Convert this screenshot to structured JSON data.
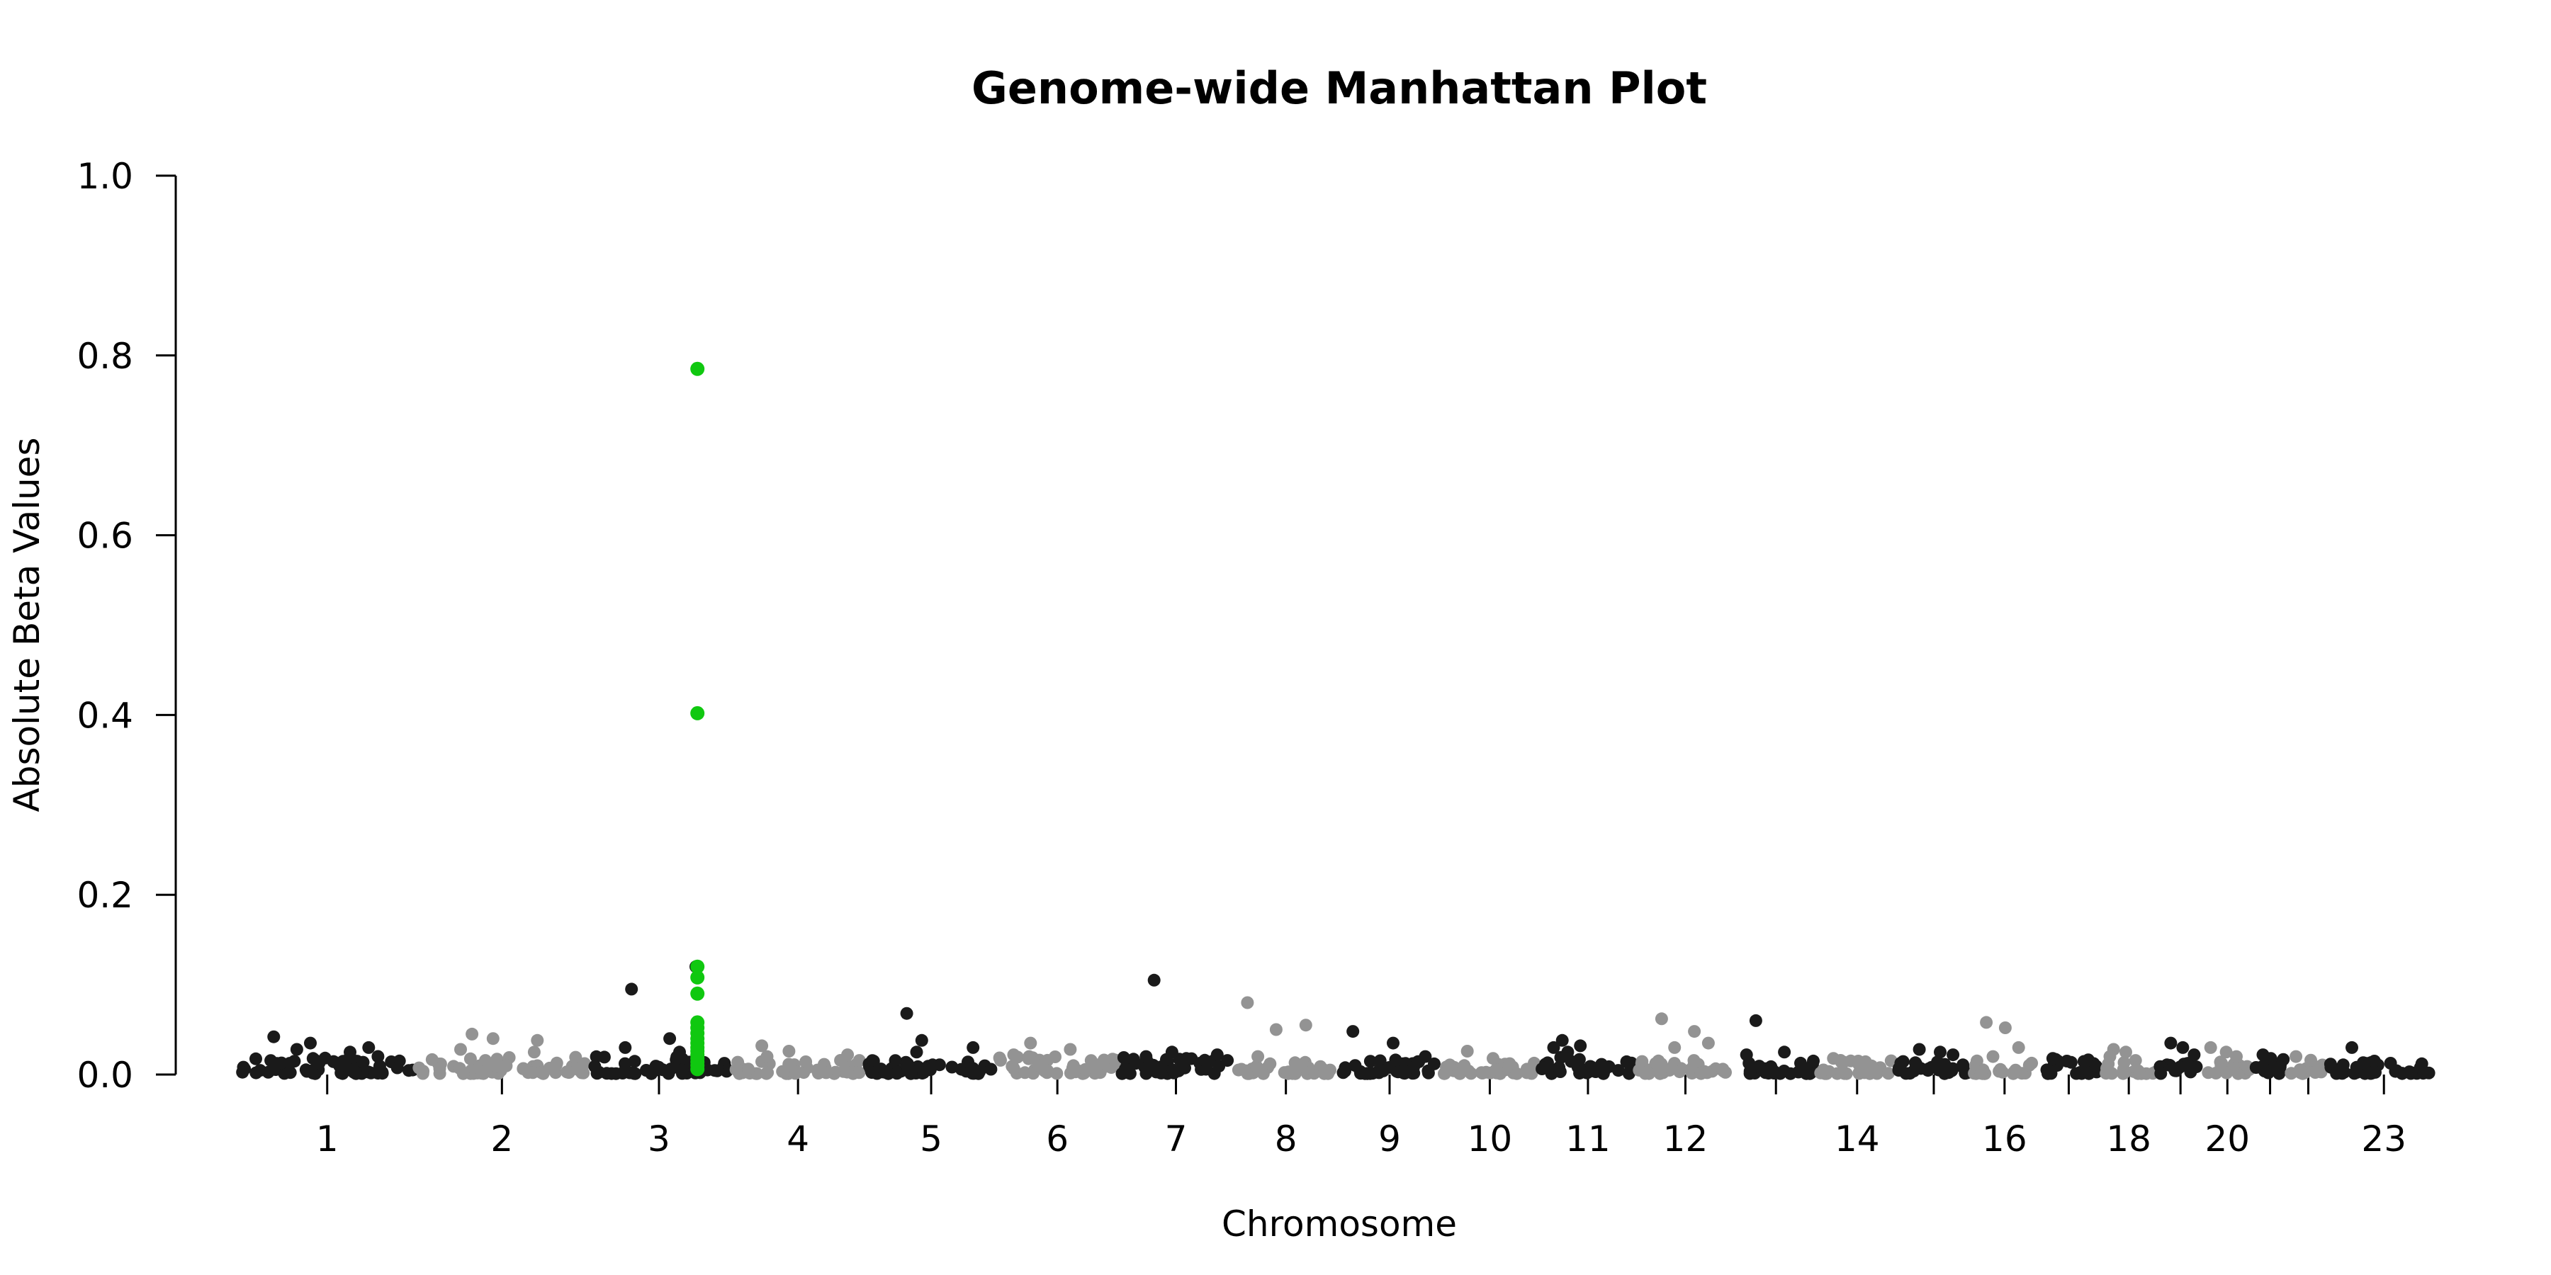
{
  "chart_data": {
    "type": "scatter",
    "title": "Genome-wide Manhattan Plot",
    "xlabel": "Chromosome",
    "ylabel": "Absolute Beta Values",
    "ylim": [
      0,
      1.0
    ],
    "y_ticks": [
      "0.0",
      "0.2",
      "0.4",
      "0.6",
      "0.8",
      "1.0"
    ],
    "grid": false,
    "legend": "none",
    "colors": {
      "odd_chromosome": "#1a1a1a",
      "even_chromosome": "#939393",
      "highlight": "#10c810"
    },
    "chromosome_tick_labels": [
      "1",
      "2",
      "3",
      "4",
      "5",
      "6",
      "7",
      "8",
      "9",
      "10",
      "11",
      "12",
      "14",
      "16",
      "18",
      "20",
      "23"
    ],
    "chromosomes": [
      {
        "chr": "1",
        "label": "1",
        "base": 0.012,
        "peaks": [
          0.042,
          0.035,
          0.03,
          0.028,
          0.025
        ]
      },
      {
        "chr": "2",
        "label": "2",
        "base": 0.012,
        "peaks": [
          0.045,
          0.04,
          0.038,
          0.028,
          0.025
        ]
      },
      {
        "chr": "3",
        "label": "3",
        "base": 0.012,
        "peaks": [
          0.095,
          0.04,
          0.12,
          0.03,
          0.025
        ]
      },
      {
        "chr": "4",
        "label": "4",
        "base": 0.01,
        "peaks": [
          0.032,
          0.026,
          0.022,
          0.02
        ]
      },
      {
        "chr": "5",
        "label": "5",
        "base": 0.01,
        "peaks": [
          0.068,
          0.038,
          0.03,
          0.025
        ]
      },
      {
        "chr": "6",
        "label": "6",
        "base": 0.012,
        "peaks": [
          0.035,
          0.028,
          0.022,
          0.02
        ]
      },
      {
        "chr": "7",
        "label": "7",
        "base": 0.012,
        "peaks": [
          0.105,
          0.025,
          0.022,
          0.02
        ]
      },
      {
        "chr": "8",
        "label": "8",
        "base": 0.01,
        "peaks": [
          0.08,
          0.05,
          0.055,
          0.02
        ]
      },
      {
        "chr": "9",
        "label": "9",
        "base": 0.01,
        "peaks": [
          0.048,
          0.035,
          0.02
        ]
      },
      {
        "chr": "10",
        "label": "10",
        "base": 0.008,
        "peaks": [
          0.026,
          0.018
        ]
      },
      {
        "chr": "11",
        "label": "11",
        "base": 0.012,
        "peaks": [
          0.038,
          0.032,
          0.03,
          0.025
        ]
      },
      {
        "chr": "12",
        "label": "12",
        "base": 0.01,
        "peaks": [
          0.062,
          0.048,
          0.035,
          0.03
        ]
      },
      {
        "chr": "13",
        "label": "",
        "base": 0.01,
        "peaks": [
          0.06,
          0.025,
          0.022
        ]
      },
      {
        "chr": "14",
        "label": "14",
        "base": 0.01,
        "peaks": [
          0.018,
          0.015
        ]
      },
      {
        "chr": "15",
        "label": "",
        "base": 0.01,
        "peaks": [
          0.028,
          0.025,
          0.022
        ]
      },
      {
        "chr": "16",
        "label": "16",
        "base": 0.01,
        "peaks": [
          0.058,
          0.052,
          0.03,
          0.02
        ]
      },
      {
        "chr": "17",
        "label": "",
        "base": 0.01,
        "peaks": [
          0.018,
          0.015
        ]
      },
      {
        "chr": "18",
        "label": "18",
        "base": 0.01,
        "peaks": [
          0.028,
          0.025,
          0.02
        ]
      },
      {
        "chr": "19",
        "label": "",
        "base": 0.01,
        "peaks": [
          0.035,
          0.03,
          0.022
        ]
      },
      {
        "chr": "20",
        "label": "20",
        "base": 0.01,
        "peaks": [
          0.03,
          0.025,
          0.02
        ]
      },
      {
        "chr": "21",
        "label": "",
        "base": 0.01,
        "peaks": [
          0.022,
          0.018
        ]
      },
      {
        "chr": "22",
        "label": "",
        "base": 0.01,
        "peaks": [
          0.02,
          0.016
        ]
      },
      {
        "chr": "23",
        "label": "23",
        "base": 0.008,
        "peaks": [
          0.03,
          0.015,
          0.012
        ]
      }
    ],
    "highlight_points": {
      "chromosome": "3",
      "values": [
        0.785,
        0.402,
        0.12,
        0.108,
        0.09,
        0.058,
        0.052,
        0.046,
        0.04,
        0.035,
        0.03,
        0.026,
        0.022,
        0.018,
        0.014,
        0.01,
        0.006
      ]
    }
  }
}
